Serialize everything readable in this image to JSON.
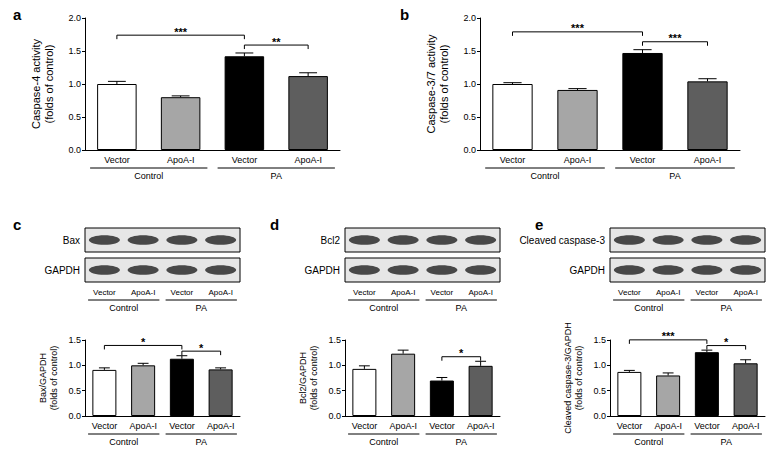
{
  "chart_data": [
    {
      "title": "a",
      "type": "bar",
      "y_label": "Caspase-4 activity\n(folds of control)",
      "categories": [
        "Vector",
        "ApoA-I",
        "Vector",
        "ApoA-I"
      ],
      "groups": [
        {
          "name": "Control",
          "size": 2
        },
        {
          "name": "PA",
          "size": 2
        }
      ],
      "values": [
        1.0,
        0.8,
        1.42,
        1.12
      ],
      "errors": [
        0.04,
        0.02,
        0.05,
        0.05
      ],
      "colors": [
        "#ffffff",
        "#a6a6a6",
        "#000000",
        "#5e5e5e"
      ],
      "ylim": [
        0,
        2
      ],
      "yticks": [
        {
          "value": 0,
          "label": "0.0"
        },
        0.5,
        {
          "value": 1,
          "label": "1.0"
        },
        1.5,
        {
          "value": 2,
          "label": "2.0"
        }
      ],
      "grid": false,
      "significance": [
        {
          "from": 0,
          "to": 2,
          "label": "***"
        },
        {
          "from": 2,
          "to": 3,
          "label": "**"
        }
      ]
    },
    {
      "title": "b",
      "type": "bar",
      "y_label": "Caspase-3/7 activity\n(folds of control)",
      "categories": [
        "Vector",
        "ApoA-I",
        "Vector",
        "ApoA-I"
      ],
      "groups": [
        {
          "name": "Control",
          "size": 2
        },
        {
          "name": "PA",
          "size": 2
        }
      ],
      "values": [
        1.0,
        0.91,
        1.47,
        1.04
      ],
      "errors": [
        0.02,
        0.02,
        0.05,
        0.04
      ],
      "colors": [
        "#ffffff",
        "#a6a6a6",
        "#000000",
        "#5e5e5e"
      ],
      "ylim": [
        0,
        2
      ],
      "yticks": [
        {
          "value": 0,
          "label": "0.0"
        },
        0.5,
        {
          "value": 1,
          "label": "1.0"
        },
        1.5,
        {
          "value": 2,
          "label": "2.0"
        }
      ],
      "grid": false,
      "significance": [
        {
          "from": 0,
          "to": 2,
          "label": "***"
        },
        {
          "from": 2,
          "to": 3,
          "label": "***"
        }
      ]
    },
    {
      "title": "c",
      "type": "bar",
      "y_label": "Bax/GAPDH\n(folds of control)",
      "categories": [
        "Vector",
        "ApoA-I",
        "Vector",
        "ApoA-I"
      ],
      "groups": [
        {
          "name": "Control",
          "size": 2
        },
        {
          "name": "PA",
          "size": 2
        }
      ],
      "values": [
        0.91,
        1.0,
        1.13,
        0.92
      ],
      "errors": [
        0.04,
        0.04,
        0.06,
        0.03
      ],
      "colors": [
        "#ffffff",
        "#a6a6a6",
        "#000000",
        "#5e5e5e"
      ],
      "ylim": [
        0,
        1.5
      ],
      "yticks": [
        {
          "value": 0,
          "label": "0.0"
        },
        0.5,
        {
          "value": 1,
          "label": "1.0"
        },
        1.5
      ],
      "grid": false,
      "significance": [
        {
          "from": 0,
          "to": 2,
          "label": "*"
        },
        {
          "from": 2,
          "to": 3,
          "label": "*"
        }
      ],
      "blot": {
        "bands": [
          "Bax",
          "GAPDH"
        ],
        "lanes": [
          "Vector",
          "ApoA-I",
          "Vector",
          "ApoA-I"
        ],
        "groups": [
          {
            "name": "Control",
            "size": 2
          },
          {
            "name": "PA",
            "size": 2
          }
        ]
      }
    },
    {
      "title": "d",
      "type": "bar",
      "y_label": "Bcl2/GAPDH\n(folds of control)",
      "categories": [
        "Vector",
        "ApoA-I",
        "Vector",
        "ApoA-I"
      ],
      "groups": [
        {
          "name": "Control",
          "size": 2
        },
        {
          "name": "PA",
          "size": 2
        }
      ],
      "values": [
        0.93,
        1.23,
        0.7,
        0.99
      ],
      "errors": [
        0.06,
        0.07,
        0.06,
        0.09
      ],
      "colors": [
        "#ffffff",
        "#a6a6a6",
        "#000000",
        "#5e5e5e"
      ],
      "ylim": [
        0,
        1.5
      ],
      "yticks": [
        {
          "value": 0,
          "label": "0.0"
        },
        0.5,
        {
          "value": 1,
          "label": "1.0"
        },
        1.5
      ],
      "grid": false,
      "significance": [
        {
          "from": 2,
          "to": 3,
          "label": "*"
        }
      ],
      "blot": {
        "bands": [
          "Bcl2",
          "GAPDH"
        ],
        "lanes": [
          "Vector",
          "ApoA-I",
          "Vector",
          "ApoA-I"
        ],
        "groups": [
          {
            "name": "Control",
            "size": 2
          },
          {
            "name": "PA",
            "size": 2
          }
        ]
      }
    },
    {
      "title": "e",
      "type": "bar",
      "y_label": "Cleaved caspase-3/GAPDH\n(folds of control)",
      "categories": [
        "Vector",
        "ApoA-I",
        "Vector",
        "ApoA-I"
      ],
      "groups": [
        {
          "name": "Control",
          "size": 2
        },
        {
          "name": "PA",
          "size": 2
        }
      ],
      "values": [
        0.87,
        0.8,
        1.26,
        1.04
      ],
      "errors": [
        0.03,
        0.05,
        0.04,
        0.07
      ],
      "colors": [
        "#ffffff",
        "#a6a6a6",
        "#000000",
        "#5e5e5e"
      ],
      "ylim": [
        0,
        1.5
      ],
      "yticks": [
        {
          "value": 0,
          "label": "0.0"
        },
        0.5,
        {
          "value": 1,
          "label": "1.0"
        },
        1.5
      ],
      "grid": false,
      "significance": [
        {
          "from": 0,
          "to": 2,
          "label": "***"
        },
        {
          "from": 2,
          "to": 3,
          "label": "*"
        }
      ],
      "blot": {
        "bands": [
          "Cleaved caspase-3",
          "GAPDH"
        ],
        "lanes": [
          "Vector",
          "ApoA-I",
          "Vector",
          "ApoA-I"
        ],
        "groups": [
          {
            "name": "Control",
            "size": 2
          },
          {
            "name": "PA",
            "size": 2
          }
        ]
      }
    }
  ]
}
